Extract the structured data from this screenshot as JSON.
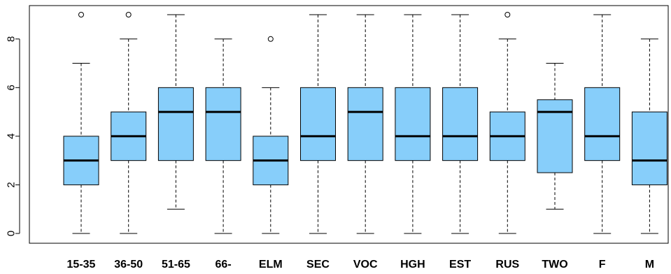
{
  "chart_data": {
    "type": "boxplot",
    "categories": [
      "15-35",
      "36-50",
      "51-65",
      "66-",
      "ELM",
      "SEC",
      "VOC",
      "HGH",
      "EST",
      "RUS",
      "TWO",
      "F",
      "M"
    ],
    "boxes": [
      {
        "min": 0,
        "q1": 2,
        "median": 3,
        "q3": 4,
        "max": 7,
        "outliers": [
          9
        ]
      },
      {
        "min": 0,
        "q1": 3,
        "median": 4,
        "q3": 5,
        "max": 8,
        "outliers": [
          9
        ]
      },
      {
        "min": 1,
        "q1": 3,
        "median": 5,
        "q3": 6,
        "max": 9,
        "outliers": []
      },
      {
        "min": 0,
        "q1": 3,
        "median": 5,
        "q3": 6,
        "max": 8,
        "outliers": []
      },
      {
        "min": 0,
        "q1": 2,
        "median": 3,
        "q3": 4,
        "max": 6,
        "outliers": [
          8
        ]
      },
      {
        "min": 0,
        "q1": 3,
        "median": 4,
        "q3": 6,
        "max": 9,
        "outliers": []
      },
      {
        "min": 0,
        "q1": 3,
        "median": 5,
        "q3": 6,
        "max": 9,
        "outliers": []
      },
      {
        "min": 0,
        "q1": 3,
        "median": 4,
        "q3": 6,
        "max": 9,
        "outliers": []
      },
      {
        "min": 0,
        "q1": 3,
        "median": 4,
        "q3": 6,
        "max": 9,
        "outliers": []
      },
      {
        "min": 0,
        "q1": 3,
        "median": 4,
        "q3": 5,
        "max": 8,
        "outliers": [
          9
        ]
      },
      {
        "min": 1,
        "q1": 2.5,
        "median": 5,
        "q3": 5.5,
        "max": 7,
        "outliers": []
      },
      {
        "min": 0,
        "q1": 3,
        "median": 4,
        "q3": 6,
        "max": 9,
        "outliers": []
      },
      {
        "min": 0,
        "q1": 2,
        "median": 3,
        "q3": 5,
        "max": 8,
        "outliers": []
      }
    ],
    "y_ticks": [
      0,
      2,
      4,
      6,
      8
    ],
    "ylim": [
      -0.4,
      9.4
    ],
    "title": "",
    "xlabel": "",
    "ylabel": "",
    "grid": false,
    "colors": {
      "box_fill": "#87CEFA",
      "box_stroke": "#000000",
      "median": "#000000",
      "whisker": "#000000"
    }
  }
}
